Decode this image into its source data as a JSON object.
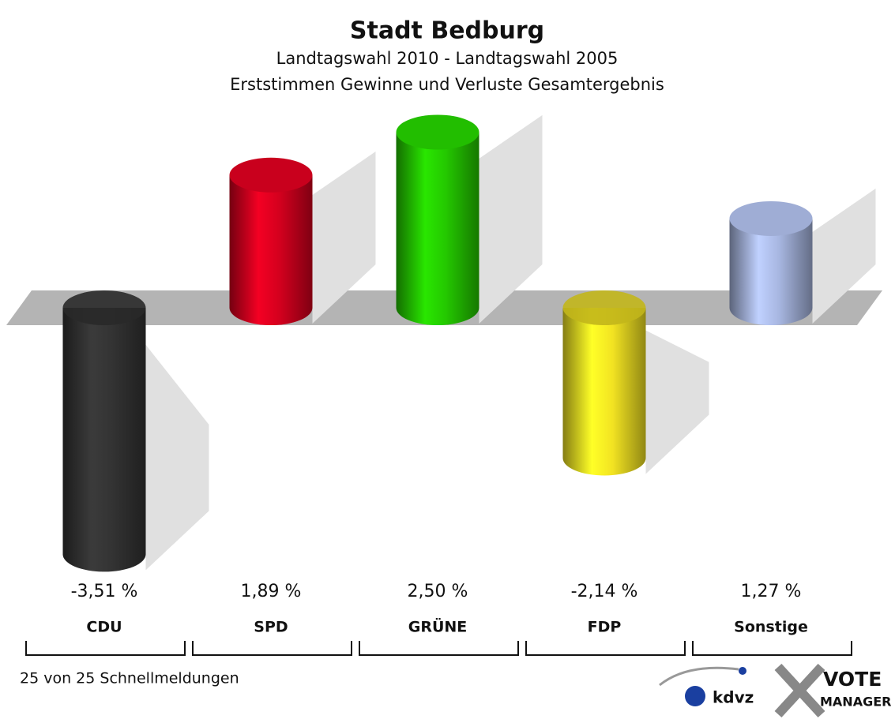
{
  "chart_data": {
    "type": "bar",
    "title": "Stadt Bedburg",
    "subtitle": [
      "Landtagswahl 2010 - Landtagswahl 2005",
      "Erststimmen Gewinne und Verluste Gesamtergebnis"
    ],
    "categories": [
      "CDU",
      "SPD",
      "GRÜNE",
      "FDP",
      "Sonstige"
    ],
    "values": [
      -3.51,
      1.89,
      2.5,
      -2.14,
      1.27
    ],
    "value_labels": [
      "-3,51 %",
      "1,89 %",
      "2,50 %",
      "-2,14 %",
      "1,27 %"
    ],
    "colors": [
      "#333333",
      "#d4001e",
      "#24c800",
      "#f2e322",
      "#a7b6e0"
    ],
    "ylim": [
      -4,
      3
    ],
    "note": "25 von 25 Schnellmeldungen"
  },
  "logos": [
    "kdvz",
    "VOTE",
    "MANAGER"
  ]
}
